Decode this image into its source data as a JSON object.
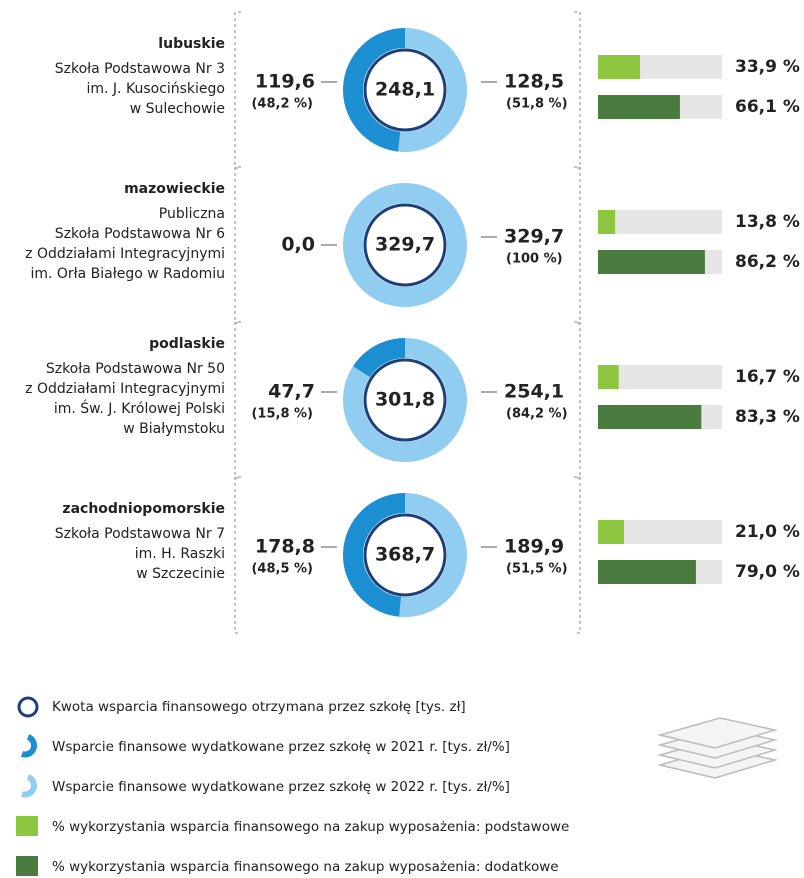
{
  "schools": [
    {
      "region": "lubuskie",
      "name": [
        "Szkoła Podstawowa Nr 3",
        "im. J. Kusocińskiego",
        "w Sulechowie"
      ],
      "total": {
        "value": 248.1,
        "label": "248,1"
      },
      "y2021": {
        "value": 119.6,
        "label": "119,6"
      },
      "share2021": "(48,2 %)",
      "y2022": {
        "value": 128.5,
        "label": "128,5"
      },
      "share2022": "(51,8 %)",
      "basic": {
        "value": 33.9,
        "label": "33,9 %"
      },
      "extra": {
        "value": 66.1,
        "label": "66,1 %"
      }
    },
    {
      "region": "mazowieckie",
      "name": [
        "Publiczna",
        "Szkoła Podstawowa Nr 6",
        "z Oddziałami Integracyjnymi",
        "im. Orła Białego w Radomiu"
      ],
      "total": {
        "value": 329.7,
        "label": "329,7"
      },
      "y2021": {
        "value": 0,
        "label": "0,0"
      },
      "y2022": {
        "value": 329.7,
        "label": "329,7"
      },
      "share2022": "(100 %)",
      "basic": {
        "value": 13.8,
        "label": "13,8 %"
      },
      "extra": {
        "value": 86.2,
        "label": "86,2 %"
      }
    },
    {
      "region": "podlaskie",
      "name": [
        "Szkoła Podstawowa Nr 50",
        "z Oddziałami Integracyjnymi",
        "im. Św. J. Królowej Polski",
        "w Białymstoku"
      ],
      "total": {
        "value": 301.8,
        "label": "301,8"
      },
      "y2021": {
        "value": 47.7,
        "label": "47,7"
      },
      "share2021": "(15,8 %)",
      "y2022": {
        "value": 254.1,
        "label": "254,1"
      },
      "share2022": "(84,2 %)",
      "basic": {
        "value": 16.7,
        "label": "16,7 %"
      },
      "extra": {
        "value": 83.3,
        "label": "83,3 %"
      }
    },
    {
      "region": "zachodniopomorskie",
      "name": [
        "Szkoła Podstawowa Nr 7",
        "im. H. Raszki",
        "w Szczecinie"
      ],
      "total": {
        "value": 368.7,
        "label": "368,7"
      },
      "y2021": {
        "value": 178.8,
        "label": "178,8"
      },
      "share2021": "(48,5 %)",
      "y2022": {
        "value": 189.9,
        "label": "189,9"
      },
      "share2022": "(51,5 %)",
      "basic": {
        "value": 21,
        "label": "21,0 %"
      },
      "extra": {
        "value": 79,
        "label": "79,0 %"
      }
    }
  ],
  "legend": [
    "Kwota wsparcia finansowego otrzymana przez szkołę [tys. zł]",
    "Wsparcie finansowe wydatkowane przez szkołę w 2021 r. [tys. zł/%]",
    "Wsparcie finansowe wydatkowane przez szkołę w 2022 r. [tys. zł/%]",
    "% wykorzystania wsparcia finansowego na zakup wyposażenia: podstawowe",
    "% wykorzystania wsparcia finansowego na zakup wyposażenia: dodatkowe"
  ]
}
